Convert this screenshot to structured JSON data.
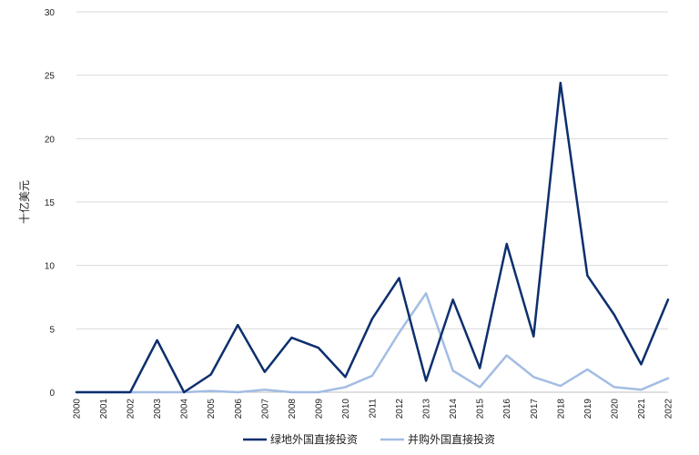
{
  "chart_data": {
    "type": "line",
    "ylabel": "十亿美元",
    "xlabel": "",
    "ylim": [
      0,
      30
    ],
    "yticks": [
      0,
      5,
      10,
      15,
      20,
      25,
      30
    ],
    "grid": true,
    "legend_position": "bottom",
    "x": [
      "2000",
      "2001",
      "2002",
      "2003",
      "2004",
      "2005",
      "2006",
      "2007",
      "2008",
      "2009",
      "2010",
      "2011",
      "2012",
      "2013",
      "2014",
      "2015",
      "2016",
      "2017",
      "2018",
      "2019",
      "2020",
      "2021",
      "2022"
    ],
    "series": [
      {
        "name": "绿地外国直接投资",
        "color": "#0d2f6e",
        "values": [
          0,
          0,
          0,
          4.1,
          0,
          1.4,
          5.3,
          1.6,
          4.3,
          3.5,
          1.2,
          5.8,
          9.0,
          0.9,
          7.3,
          1.9,
          11.7,
          4.4,
          24.4,
          9.2,
          6.1,
          2.2,
          7.3
        ]
      },
      {
        "name": "并购外国直接投资",
        "color": "#a3bde3",
        "values": [
          0,
          0,
          0,
          0,
          0,
          0.1,
          0,
          0.2,
          0,
          0,
          0.4,
          1.3,
          4.7,
          7.8,
          1.7,
          0.4,
          2.9,
          1.2,
          0.5,
          1.8,
          0.4,
          0.2,
          1.1
        ]
      }
    ]
  }
}
